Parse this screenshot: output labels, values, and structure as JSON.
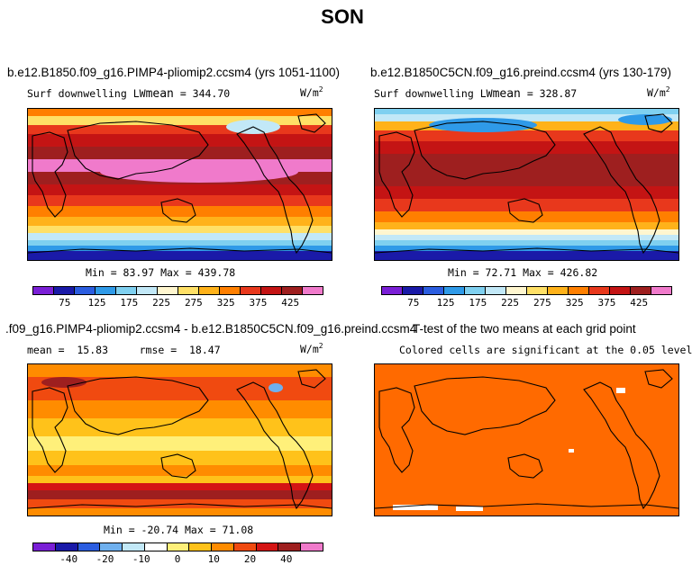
{
  "figure_title": "SON",
  "panels": {
    "tl": {
      "case": "b.e12.B1850.f09_g16.PIMP4-pliomip2.ccsm4 (yrs 1051-1100)",
      "var": "Surf downwelling LW",
      "mean_label": "mean",
      "mean": "= 344.70",
      "units": "W/m",
      "units_sup": "2",
      "minmax": "Min =  83.97 Max = 439.78",
      "ticks": [
        "75",
        "125",
        "175",
        "225",
        "275",
        "325",
        "375",
        "425"
      ]
    },
    "tr": {
      "case": "b.e12.B1850C5CN.f09_g16.preind.ccsm4 (yrs 130-179)",
      "var": "Surf downwelling LW",
      "mean_label": "mean",
      "mean": "= 328.87",
      "units": "W/m",
      "units_sup": "2",
      "minmax": "Min =  72.71 Max = 426.82",
      "ticks": [
        "75",
        "125",
        "175",
        "225",
        "275",
        "325",
        "375",
        "425"
      ]
    },
    "bl": {
      "case": ".f09_g16.PIMP4-pliomip2.ccsm4 - b.e12.B1850C5CN.f09_g16.preind.ccsm4",
      "stats": "mean =  15.83     rmse =  18.47",
      "units": "W/m",
      "units_sup": "2",
      "minmax": "Min = -20.74 Max =  71.08",
      "ticks": [
        "-40",
        "-20",
        "-10",
        "0",
        "10",
        "20",
        "40"
      ]
    },
    "br": {
      "title": "T-test of the two means at each grid point",
      "subtitle": "Colored cells are significant at the 0.05 level"
    }
  },
  "colors": {
    "abs_scale": [
      "#7a1fd6",
      "#1a1aa8",
      "#2b5de0",
      "#2f9ae8",
      "#7fd0f0",
      "#c2e8f7",
      "#fff6cf",
      "#ffe066",
      "#ffb21a",
      "#ff7f00",
      "#e8381c",
      "#c41414",
      "#9e1f1f",
      "#f07acb"
    ],
    "diff_scale": [
      "#7a1fd6",
      "#1a1aa8",
      "#2b5de0",
      "#6fb0ee",
      "#c2e8f7",
      "#ffffff",
      "#fff07a",
      "#ffc21a",
      "#ff8c00",
      "#f04a10",
      "#d41414",
      "#9e1f1f",
      "#f07acb"
    ],
    "ttest": "#ff6a00"
  },
  "chart_data": [
    {
      "type": "heatmap",
      "title": "b.e12.B1850.f09_g16.PIMP4-pliomip2.ccsm4 (yrs 1051-1100)",
      "variable": "Surf downwelling LW",
      "units": "W/m2",
      "mean": 344.7,
      "min": 83.97,
      "max": 439.78,
      "colorbar_ticks": [
        75,
        125,
        175,
        225,
        275,
        325,
        375,
        425
      ]
    },
    {
      "type": "heatmap",
      "title": "b.e12.B1850C5CN.f09_g16.preind.ccsm4 (yrs 130-179)",
      "variable": "Surf downwelling LW",
      "units": "W/m2",
      "mean": 328.87,
      "min": 72.71,
      "max": 426.82,
      "colorbar_ticks": [
        75,
        125,
        175,
        225,
        275,
        325,
        375,
        425
      ]
    },
    {
      "type": "heatmap",
      "title": ".f09_g16.PIMP4-pliomip2.ccsm4 - b.e12.B1850C5CN.f09_g16.preind.ccsm4",
      "units": "W/m2",
      "mean": 15.83,
      "rmse": 18.47,
      "min": -20.74,
      "max": 71.08,
      "colorbar_ticks": [
        -40,
        -20,
        -10,
        0,
        10,
        20,
        40
      ]
    },
    {
      "type": "heatmap",
      "title": "T-test of the two means at each grid point",
      "subtitle": "Colored cells are significant at the 0.05 level"
    }
  ]
}
